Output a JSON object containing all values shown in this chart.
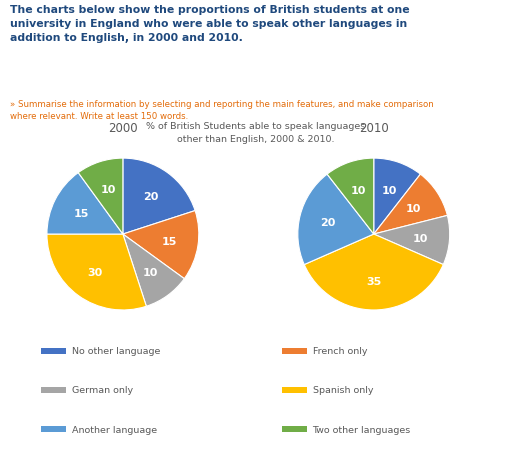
{
  "title_line1": "The charts below show the proportions of British students at one",
  "title_line2": "university in England who were able to speak other languages in",
  "title_line3": "addition to English, in 2000 and 2010.",
  "subtitle": "» Summarise the information by selecting and reporting the main features, and make comparison\nwhere relevant. Write at least 150 words.",
  "chart_title": "% of British Students able to speak languages\nother than English, 2000 & 2010.",
  "year_2000": "2000",
  "year_2010": "2010",
  "labels": [
    "No other language",
    "French only",
    "German only",
    "Spanish only",
    "Another language",
    "Two other languages"
  ],
  "colors": [
    "#4472C4",
    "#ED7D31",
    "#A5A5A5",
    "#FFC000",
    "#5B9BD5",
    "#70AD47"
  ],
  "values_2000": [
    20,
    15,
    10,
    30,
    15,
    10
  ],
  "values_2010": [
    10,
    10,
    10,
    35,
    20,
    10
  ],
  "bg_color": "#FFFFFF",
  "title_color": "#1F497D",
  "subtitle_color": "#E36C0A",
  "chart_title_color": "#595959",
  "label_text_color": "#FFFFFF",
  "legend_text_color": "#595959"
}
